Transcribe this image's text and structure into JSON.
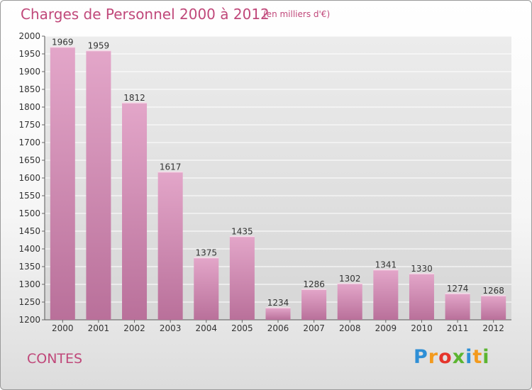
{
  "header": {
    "title": "Charges de Personnel 2000 à 2012",
    "subtitle": "(en milliers d'€)"
  },
  "footer": {
    "commune": "CONTES",
    "logo": "Proxiti"
  },
  "colors": {
    "bar": "#d98fb8",
    "text": "#c0487a",
    "logo_blue": "#2e8fd6",
    "logo_orange": "#f39a1e",
    "logo_red": "#e5352c",
    "logo_green": "#5cb531"
  },
  "chart_data": {
    "type": "bar",
    "categories": [
      "2000",
      "2001",
      "2002",
      "2003",
      "2004",
      "2005",
      "2006",
      "2007",
      "2008",
      "2009",
      "2010",
      "2011",
      "2012"
    ],
    "values": [
      1969,
      1959,
      1812,
      1617,
      1375,
      1435,
      1234,
      1286,
      1302,
      1341,
      1330,
      1274,
      1268
    ],
    "ylim": [
      1200,
      2000
    ],
    "yticks": [
      1200,
      1250,
      1300,
      1350,
      1400,
      1450,
      1500,
      1550,
      1600,
      1650,
      1700,
      1750,
      1800,
      1850,
      1900,
      1950,
      2000
    ],
    "grid": true,
    "data_labels": true
  }
}
